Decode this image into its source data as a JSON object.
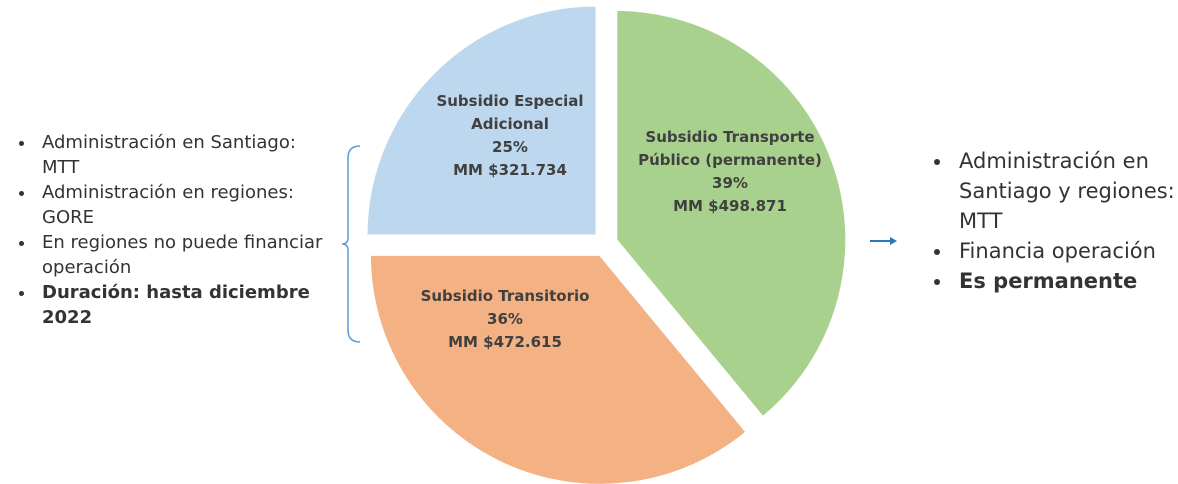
{
  "chart_data": {
    "type": "pie",
    "categories": [
      "Subsidio Especial Adicional",
      "Subsidio Transitorio",
      "Subsidio Transporte Público (permanente)"
    ],
    "values": [
      25,
      36,
      39
    ],
    "value_labels": [
      "25%",
      "36%",
      "39%"
    ],
    "amount_labels": [
      "MM $321.734",
      "MM $472.615",
      "MM $498.871"
    ],
    "colors": [
      "#bdd7ee",
      "#f4b183",
      "#a9d18e"
    ],
    "left_notes": [
      "Administración en Santiago: MTT",
      "Administración en regiones: GORE",
      "En regiones no puede financiar operación",
      "Duración: hasta diciembre 2022"
    ],
    "right_notes": [
      "Administración en Santiago y regiones: MTT",
      "Financia operación",
      "Es permanente"
    ]
  }
}
